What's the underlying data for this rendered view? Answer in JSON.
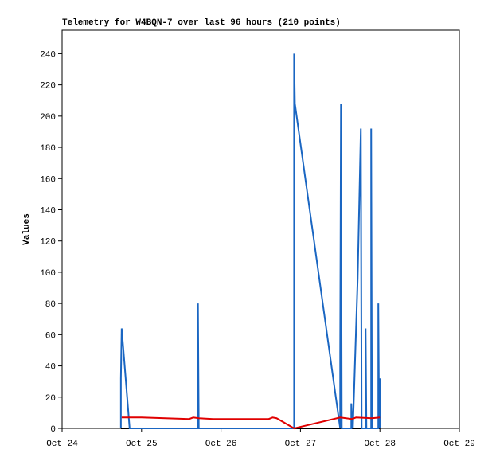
{
  "chart_data": {
    "type": "line",
    "title": "Telemetry for W4BQN-7 over last 96 hours (210 points)",
    "y_label": "Values",
    "xlim": [
      24,
      29
    ],
    "xticks": [
      {
        "value": 24,
        "label": "Oct 24"
      },
      {
        "value": 25,
        "label": "Oct 25"
      },
      {
        "value": 26,
        "label": "Oct 26"
      },
      {
        "value": 27,
        "label": "Oct 27"
      },
      {
        "value": 28,
        "label": "Oct 28"
      },
      {
        "value": 29,
        "label": "Oct 29"
      }
    ],
    "ylim": [
      0,
      255
    ],
    "yticks": [
      0,
      20,
      40,
      60,
      80,
      100,
      120,
      140,
      160,
      180,
      200,
      220,
      240
    ],
    "grid": false,
    "series": [
      {
        "color": "#000000",
        "x": [
          24.74,
          28.0
        ],
        "values": [
          0,
          0
        ]
      },
      {
        "color": "#1a66c2",
        "x": [
          24.74,
          24.74,
          24.75,
          24.85,
          25.71,
          25.71,
          25.72,
          26.92,
          26.92,
          26.93,
          27.5,
          27.5,
          27.51,
          27.52,
          27.64,
          27.64,
          27.66,
          27.72,
          27.75,
          27.76,
          27.77,
          27.82,
          27.82,
          27.83,
          27.89,
          27.89,
          27.9,
          27.98,
          27.98,
          27.99,
          28.0,
          28.0
        ],
        "values": [
          0,
          32,
          64,
          0,
          0,
          80,
          0,
          0,
          240,
          208,
          0,
          48,
          208,
          0,
          0,
          16,
          0,
          96,
          168,
          192,
          0,
          0,
          64,
          0,
          0,
          192,
          0,
          0,
          80,
          0,
          32,
          0
        ]
      },
      {
        "color": "#e00000",
        "x": [
          24.75,
          25.0,
          25.6,
          25.65,
          25.72,
          25.9,
          26.6,
          26.65,
          26.7,
          26.92,
          27.5,
          27.65,
          27.7,
          27.9,
          28.0
        ],
        "values": [
          7,
          7,
          6,
          7,
          6.5,
          6,
          6,
          7,
          6.5,
          0,
          7,
          6,
          7,
          6.5,
          7
        ]
      }
    ]
  }
}
